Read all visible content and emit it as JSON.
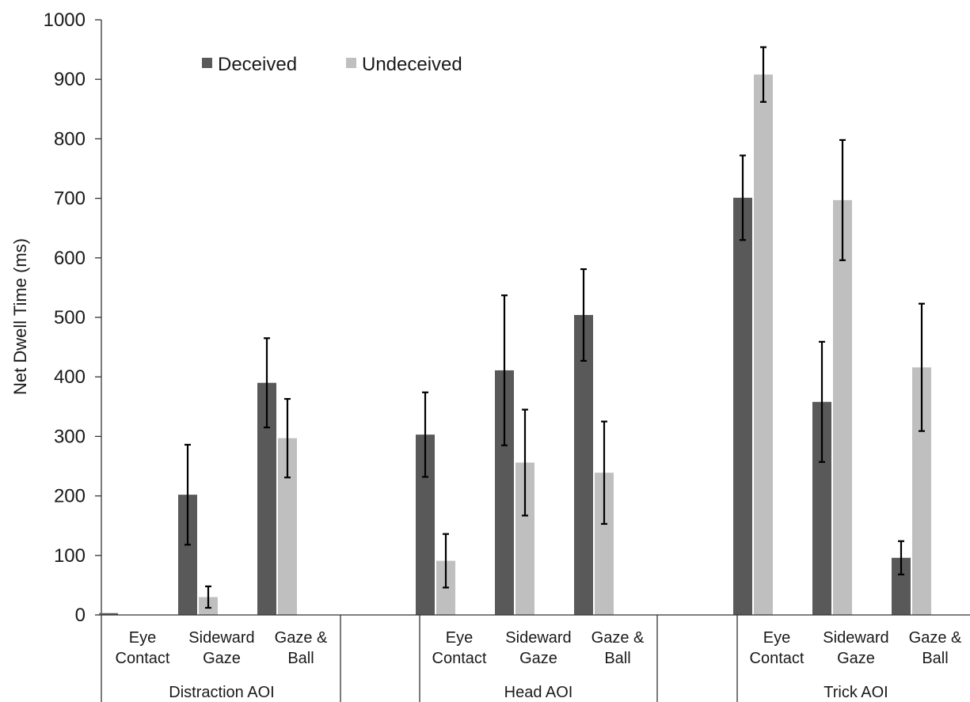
{
  "chart_data": {
    "type": "bar",
    "ylabel": "Net Dwell Time (ms)",
    "ylim": [
      0,
      1000
    ],
    "yticks": [
      0,
      100,
      200,
      300,
      400,
      500,
      600,
      700,
      800,
      900,
      1000
    ],
    "grid": false,
    "legend": {
      "position": "top-left",
      "entries": [
        "Deceived",
        "Undeceived"
      ]
    },
    "groups": [
      {
        "label": "Distraction AOI",
        "categories": [
          [
            "Eye",
            "Contact"
          ],
          [
            "Sideward",
            "Gaze"
          ],
          [
            "Gaze &",
            "Ball"
          ]
        ]
      },
      {
        "label": "Head AOI",
        "categories": [
          [
            "Eye",
            "Contact"
          ],
          [
            "Sideward",
            "Gaze"
          ],
          [
            "Gaze &",
            "Ball"
          ]
        ]
      },
      {
        "label": "Trick AOI",
        "categories": [
          [
            "Eye",
            "Contact"
          ],
          [
            "Sideward",
            "Gaze"
          ],
          [
            "Gaze &",
            "Ball"
          ]
        ]
      }
    ],
    "series": [
      {
        "name": "Deceived",
        "color": "#595959",
        "values": [
          [
            3,
            202,
            390
          ],
          [
            303,
            411,
            504
          ],
          [
            701,
            358,
            96
          ]
        ],
        "error": [
          [
            0,
            84,
            75
          ],
          [
            71,
            126,
            77
          ],
          [
            71,
            101,
            28
          ]
        ]
      },
      {
        "name": "Undeceived",
        "color": "#bfbfbf",
        "values": [
          [
            0,
            30,
            297
          ],
          [
            91,
            256,
            239
          ],
          [
            908,
            697,
            416
          ]
        ],
        "error": [
          [
            0,
            18,
            66
          ],
          [
            45,
            89,
            86
          ],
          [
            46,
            101,
            107
          ]
        ]
      }
    ]
  }
}
